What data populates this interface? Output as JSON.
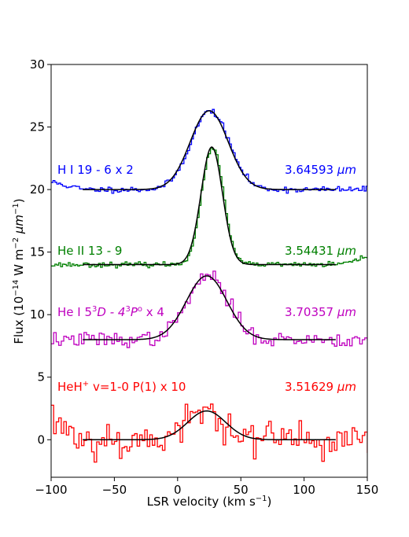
{
  "chart_data": {
    "type": "line",
    "xlabel": "LSR velocity (km s",
    "xlabel_sup": "−1",
    "xlabel_end": ")",
    "ylabel_parts": {
      "a": "Flux (10",
      "sup1": "−14",
      "b": " W m",
      "sup2": "−2",
      "c": " ",
      "mu": "μm",
      "sup3": "−1",
      "d": ")"
    },
    "xlim": [
      -100,
      150
    ],
    "ylim": [
      -3,
      30
    ],
    "xticks": [
      -100,
      -50,
      0,
      50,
      100,
      150
    ],
    "yticks": [
      0,
      5,
      10,
      15,
      20,
      25,
      30
    ],
    "grid": false,
    "series": [
      {
        "id": "hi",
        "color": "#0000ff",
        "label": {
          "t1": "H I  19 - 6 x 2"
        },
        "wavelength": {
          "num": "3.64593 ",
          "unit": "μm"
        },
        "data_x": [
          -100,
          150
        ],
        "baseline": 20.0,
        "start_level": 20.6,
        "noise": 0.12,
        "step": 1.5,
        "seed": 11,
        "fit": {
          "baseline": 20.0,
          "amp": 6.3,
          "center": 25,
          "sigma": 15,
          "x_range": [
            -75,
            125
          ]
        }
      },
      {
        "id": "heii",
        "color": "#008000",
        "label": {
          "t1": "He II 13 - 9"
        },
        "wavelength": {
          "num": "3.54431 ",
          "unit": "μm"
        },
        "data_x": [
          -100,
          150
        ],
        "baseline": 14.0,
        "start_level": 14.0,
        "end_level": 14.5,
        "noise": 0.1,
        "step": 1.5,
        "seed": 23,
        "fit": {
          "baseline": 14.0,
          "amp": 9.4,
          "center": 27,
          "sigma": 8.5,
          "x_range": [
            -75,
            125
          ]
        }
      },
      {
        "id": "hei",
        "color": "#bf00bf",
        "label": {
          "t1": "He I 5",
          "t1sup": "3",
          "t2": "D - 4",
          "t2sup": "3",
          "t3": "P",
          "t3sup": "o",
          "t4": " x 4"
        },
        "wavelength": {
          "num": "3.70357 ",
          "unit": "μm"
        },
        "data_x": [
          -100,
          150
        ],
        "baseline": 8.0,
        "start_level": 8.0,
        "noise": 0.3,
        "step": 2.0,
        "seed": 37,
        "fit": {
          "baseline": 8.0,
          "amp": 5.1,
          "center": 23,
          "sigma": 16,
          "x_range": [
            -75,
            125
          ]
        }
      },
      {
        "id": "heh",
        "color": "#ff0000",
        "label": {
          "t1": "HeH",
          "t1sup": "+",
          "t2": " v=1-0 P(1) x 10"
        },
        "wavelength": {
          "num": "3.51629 ",
          "unit": "μm"
        },
        "data_x": [
          -100,
          150
        ],
        "baseline": 0.0,
        "start_level": 1.7,
        "noise": 0.75,
        "step": 2.0,
        "seed": 53,
        "fit": {
          "baseline": 0.0,
          "amp": 2.3,
          "center": 23,
          "sigma": 15,
          "x_range": [
            -75,
            125
          ]
        }
      }
    ]
  }
}
